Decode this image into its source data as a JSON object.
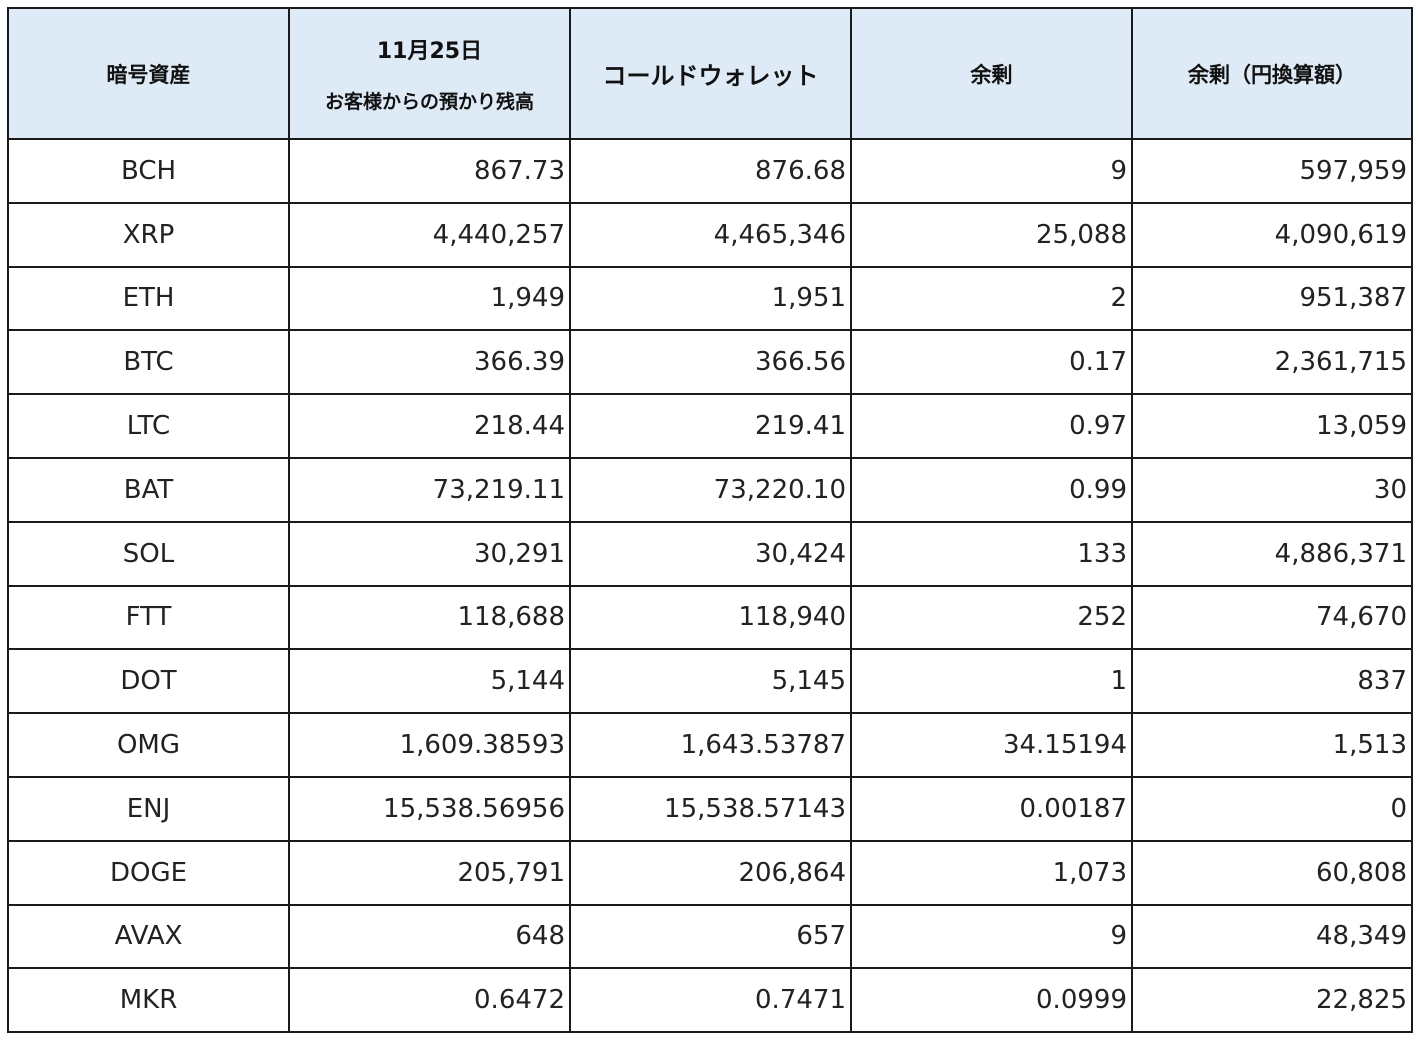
{
  "table": {
    "headers": {
      "asset": "暗号資産",
      "balance_line1": "11月25日",
      "balance_line2": "お客様からの預かり残高",
      "cold_wallet": "コールドウォレット",
      "surplus": "余剰",
      "surplus_jpy": "余剰（円換算額）"
    },
    "rows": [
      {
        "asset": "BCH",
        "balance": "867.73",
        "cold_wallet": "876.68",
        "surplus": "9",
        "surplus_jpy": "597,959"
      },
      {
        "asset": "XRP",
        "balance": "4,440,257",
        "cold_wallet": "4,465,346",
        "surplus": "25,088",
        "surplus_jpy": "4,090,619"
      },
      {
        "asset": "ETH",
        "balance": "1,949",
        "cold_wallet": "1,951",
        "surplus": "2",
        "surplus_jpy": "951,387"
      },
      {
        "asset": "BTC",
        "balance": "366.39",
        "cold_wallet": "366.56",
        "surplus": "0.17",
        "surplus_jpy": "2,361,715"
      },
      {
        "asset": "LTC",
        "balance": "218.44",
        "cold_wallet": "219.41",
        "surplus": "0.97",
        "surplus_jpy": "13,059"
      },
      {
        "asset": "BAT",
        "balance": "73,219.11",
        "cold_wallet": "73,220.10",
        "surplus": "0.99",
        "surplus_jpy": "30"
      },
      {
        "asset": "SOL",
        "balance": "30,291",
        "cold_wallet": "30,424",
        "surplus": "133",
        "surplus_jpy": "4,886,371"
      },
      {
        "asset": "FTT",
        "balance": "118,688",
        "cold_wallet": "118,940",
        "surplus": "252",
        "surplus_jpy": "74,670"
      },
      {
        "asset": "DOT",
        "balance": "5,144",
        "cold_wallet": "5,145",
        "surplus": "1",
        "surplus_jpy": "837"
      },
      {
        "asset": "OMG",
        "balance": "1,609.38593",
        "cold_wallet": "1,643.53787",
        "surplus": "34.15194",
        "surplus_jpy": "1,513"
      },
      {
        "asset": "ENJ",
        "balance": "15,538.56956",
        "cold_wallet": "15,538.57143",
        "surplus": "0.00187",
        "surplus_jpy": "0"
      },
      {
        "asset": "DOGE",
        "balance": "205,791",
        "cold_wallet": "206,864",
        "surplus": "1,073",
        "surplus_jpy": "60,808"
      },
      {
        "asset": "AVAX",
        "balance": "648",
        "cold_wallet": "657",
        "surplus": "9",
        "surplus_jpy": "48,349"
      },
      {
        "asset": "MKR",
        "balance": "0.6472",
        "cold_wallet": "0.7471",
        "surplus": "0.0999",
        "surplus_jpy": "22,825"
      }
    ]
  },
  "colors": {
    "header_background": "#deeaf6",
    "border": "#1a1a1a"
  }
}
